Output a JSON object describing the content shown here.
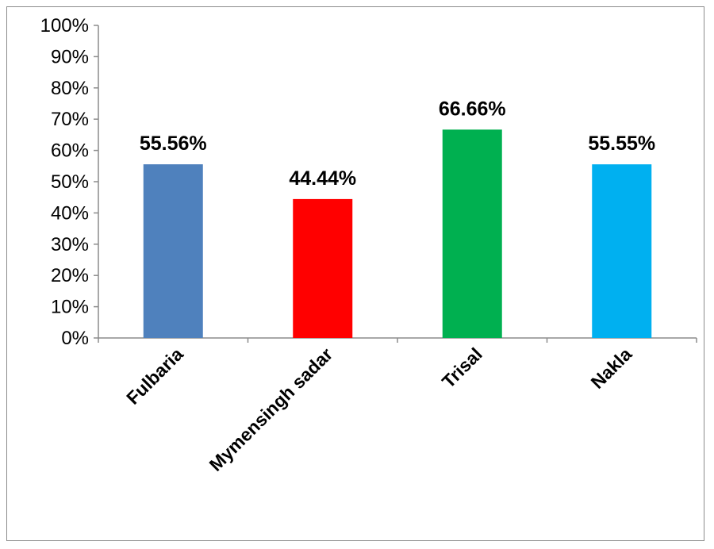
{
  "chart_data": {
    "type": "bar",
    "title": "",
    "xlabel": "",
    "ylabel": "",
    "categories": [
      "Fulbaria",
      "Mymensingh sadar",
      "Trisal",
      "Nakla"
    ],
    "values": [
      55.56,
      44.44,
      66.66,
      55.55
    ],
    "data_labels": [
      "55.56%",
      "44.44%",
      "66.66%",
      "55.55%"
    ],
    "bar_colors": [
      "#4f81bd",
      "#ff0000",
      "#00b050",
      "#00b0f0"
    ],
    "ylim": [
      0,
      100
    ],
    "yticks": [
      0,
      10,
      20,
      30,
      40,
      50,
      60,
      70,
      80,
      90,
      100
    ],
    "ytick_labels": [
      "0%",
      "10%",
      "20%",
      "30%",
      "40%",
      "50%",
      "60%",
      "70%",
      "80%",
      "90%",
      "100%"
    ],
    "grid": false,
    "legend": "none"
  }
}
